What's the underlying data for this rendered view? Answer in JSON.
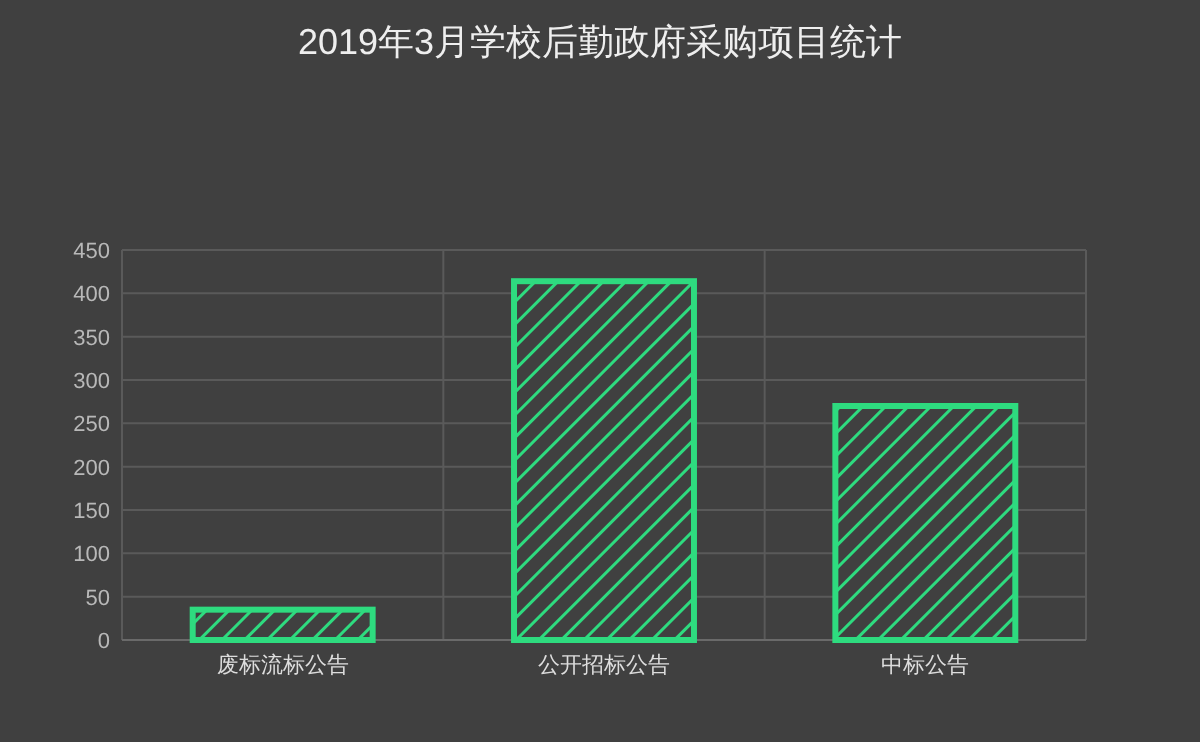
{
  "chart_data": {
    "type": "bar",
    "title": "2019年3月学校后勤政府采购项目统计",
    "categories": [
      "废标流标公告",
      "公开招标公告",
      "中标公告"
    ],
    "values": [
      35,
      414,
      270
    ],
    "color": "#2edb7f",
    "ylim": [
      0,
      450
    ],
    "yticks": [
      0,
      50,
      100,
      150,
      200,
      250,
      300,
      350,
      400,
      450
    ],
    "grid": true
  }
}
